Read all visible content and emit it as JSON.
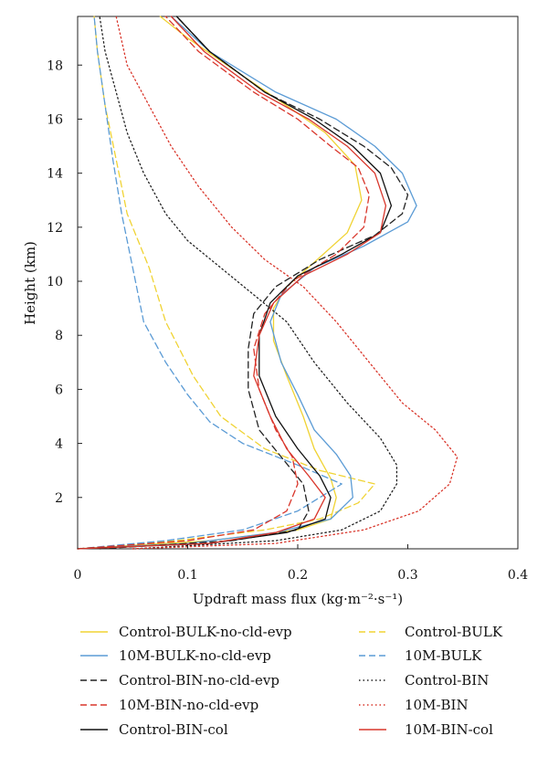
{
  "chart_data": {
    "type": "line",
    "xlabel": "Updraft mass flux (kg·m⁻²·s⁻¹)",
    "ylabel": "Height (km)",
    "xlim": [
      0,
      0.4
    ],
    "ylim": [
      0.1,
      19.8
    ],
    "x_ticks": [
      "0",
      "0.1",
      "0.2",
      "0.3",
      "0.4"
    ],
    "y_ticks": [
      "2",
      "4",
      "6",
      "8",
      "10",
      "12",
      "14",
      "16",
      "18"
    ],
    "x_tick_values": [
      0,
      0.1,
      0.2,
      0.3,
      0.4
    ],
    "y_tick_values": [
      2,
      4,
      6,
      8,
      10,
      12,
      14,
      16,
      18
    ],
    "grid": false,
    "legend_position": "below, two columns",
    "series": [
      {
        "name": "Control-BULK-no-cld-evp",
        "color": "#f0d334",
        "dash": "solid",
        "points": [
          [
            0.0,
            0.1
          ],
          [
            0.12,
            0.4
          ],
          [
            0.2,
            0.8
          ],
          [
            0.23,
            1.2
          ],
          [
            0.235,
            2.0
          ],
          [
            0.23,
            2.7
          ],
          [
            0.215,
            3.8
          ],
          [
            0.205,
            5.0
          ],
          [
            0.19,
            6.5
          ],
          [
            0.178,
            7.8
          ],
          [
            0.178,
            9.0
          ],
          [
            0.19,
            9.8
          ],
          [
            0.215,
            10.7
          ],
          [
            0.245,
            11.8
          ],
          [
            0.258,
            13.0
          ],
          [
            0.252,
            14.3
          ],
          [
            0.225,
            15.5
          ],
          [
            0.19,
            16.5
          ],
          [
            0.15,
            17.6
          ],
          [
            0.1,
            19.0
          ],
          [
            0.075,
            19.8
          ]
        ]
      },
      {
        "name": "Control-BULK",
        "color": "#f0d334",
        "dash": "dashed",
        "points": [
          [
            0.0,
            0.1
          ],
          [
            0.09,
            0.4
          ],
          [
            0.17,
            0.8
          ],
          [
            0.22,
            1.2
          ],
          [
            0.255,
            1.8
          ],
          [
            0.27,
            2.5
          ],
          [
            0.22,
            3.0
          ],
          [
            0.17,
            3.8
          ],
          [
            0.13,
            5.0
          ],
          [
            0.105,
            6.5
          ],
          [
            0.08,
            8.5
          ],
          [
            0.065,
            10.5
          ],
          [
            0.045,
            12.5
          ],
          [
            0.035,
            14.5
          ],
          [
            0.025,
            16.5
          ],
          [
            0.018,
            18.5
          ],
          [
            0.015,
            19.8
          ]
        ]
      },
      {
        "name": "10M-BULK-no-cld-evp",
        "color": "#5b9bd5",
        "dash": "solid",
        "points": [
          [
            0.0,
            0.1
          ],
          [
            0.1,
            0.3
          ],
          [
            0.18,
            0.7
          ],
          [
            0.23,
            1.2
          ],
          [
            0.25,
            2.0
          ],
          [
            0.248,
            2.8
          ],
          [
            0.235,
            3.6
          ],
          [
            0.215,
            4.5
          ],
          [
            0.2,
            5.8
          ],
          [
            0.185,
            7.0
          ],
          [
            0.175,
            8.5
          ],
          [
            0.185,
            9.5
          ],
          [
            0.215,
            10.5
          ],
          [
            0.26,
            11.3
          ],
          [
            0.3,
            12.2
          ],
          [
            0.308,
            12.8
          ],
          [
            0.295,
            14.0
          ],
          [
            0.27,
            15.0
          ],
          [
            0.235,
            16.0
          ],
          [
            0.18,
            17.0
          ],
          [
            0.12,
            18.5
          ],
          [
            0.085,
            19.8
          ]
        ]
      },
      {
        "name": "10M-BULK",
        "color": "#5b9bd5",
        "dash": "dashed",
        "points": [
          [
            0.0,
            0.1
          ],
          [
            0.08,
            0.4
          ],
          [
            0.15,
            0.8
          ],
          [
            0.2,
            1.5
          ],
          [
            0.24,
            2.5
          ],
          [
            0.2,
            3.2
          ],
          [
            0.15,
            4.0
          ],
          [
            0.12,
            4.8
          ],
          [
            0.1,
            5.8
          ],
          [
            0.08,
            7.0
          ],
          [
            0.06,
            8.5
          ],
          [
            0.05,
            10.5
          ],
          [
            0.04,
            12.5
          ],
          [
            0.032,
            14.5
          ],
          [
            0.025,
            16.5
          ],
          [
            0.018,
            18.5
          ],
          [
            0.015,
            19.8
          ]
        ]
      },
      {
        "name": "Control-BIN-no-cld-evp",
        "color": "#222222",
        "dash": "dashed",
        "points": [
          [
            0.02,
            0.1
          ],
          [
            0.14,
            0.4
          ],
          [
            0.2,
            0.8
          ],
          [
            0.21,
            1.5
          ],
          [
            0.205,
            2.5
          ],
          [
            0.185,
            3.5
          ],
          [
            0.165,
            4.5
          ],
          [
            0.155,
            6.0
          ],
          [
            0.155,
            7.5
          ],
          [
            0.16,
            8.8
          ],
          [
            0.18,
            9.8
          ],
          [
            0.22,
            10.8
          ],
          [
            0.27,
            11.7
          ],
          [
            0.295,
            12.5
          ],
          [
            0.3,
            13.2
          ],
          [
            0.285,
            14.2
          ],
          [
            0.26,
            15.0
          ],
          [
            0.22,
            16.0
          ],
          [
            0.17,
            17.0
          ],
          [
            0.12,
            18.5
          ],
          [
            0.09,
            19.8
          ]
        ]
      },
      {
        "name": "Control-BIN",
        "color": "#222222",
        "dash": "dotted",
        "points": [
          [
            0.05,
            0.1
          ],
          [
            0.18,
            0.4
          ],
          [
            0.24,
            0.8
          ],
          [
            0.275,
            1.5
          ],
          [
            0.29,
            2.5
          ],
          [
            0.29,
            3.2
          ],
          [
            0.275,
            4.2
          ],
          [
            0.245,
            5.5
          ],
          [
            0.215,
            7.0
          ],
          [
            0.19,
            8.5
          ],
          [
            0.16,
            9.5
          ],
          [
            0.13,
            10.5
          ],
          [
            0.1,
            11.5
          ],
          [
            0.08,
            12.5
          ],
          [
            0.06,
            14.0
          ],
          [
            0.045,
            15.5
          ],
          [
            0.035,
            17.0
          ],
          [
            0.025,
            18.5
          ],
          [
            0.02,
            19.8
          ]
        ]
      },
      {
        "name": "10M-BIN-no-cld-evp",
        "color": "#d9362b",
        "dash": "dashed",
        "points": [
          [
            0.0,
            0.1
          ],
          [
            0.1,
            0.4
          ],
          [
            0.16,
            0.8
          ],
          [
            0.19,
            1.5
          ],
          [
            0.2,
            2.5
          ],
          [
            0.195,
            3.5
          ],
          [
            0.18,
            4.5
          ],
          [
            0.165,
            6.0
          ],
          [
            0.16,
            7.5
          ],
          [
            0.17,
            8.8
          ],
          [
            0.195,
            10.0
          ],
          [
            0.235,
            11.0
          ],
          [
            0.26,
            12.0
          ],
          [
            0.265,
            13.2
          ],
          [
            0.255,
            14.2
          ],
          [
            0.23,
            15.0
          ],
          [
            0.2,
            16.0
          ],
          [
            0.16,
            17.0
          ],
          [
            0.11,
            18.5
          ],
          [
            0.08,
            19.8
          ]
        ]
      },
      {
        "name": "10M-BIN",
        "color": "#d9362b",
        "dash": "dotted",
        "points": [
          [
            0.05,
            0.1
          ],
          [
            0.18,
            0.3
          ],
          [
            0.26,
            0.8
          ],
          [
            0.31,
            1.5
          ],
          [
            0.338,
            2.5
          ],
          [
            0.345,
            3.5
          ],
          [
            0.325,
            4.5
          ],
          [
            0.295,
            5.5
          ],
          [
            0.265,
            7.0
          ],
          [
            0.235,
            8.5
          ],
          [
            0.205,
            9.8
          ],
          [
            0.17,
            10.8
          ],
          [
            0.14,
            12.0
          ],
          [
            0.11,
            13.5
          ],
          [
            0.085,
            15.0
          ],
          [
            0.065,
            16.5
          ],
          [
            0.045,
            18.0
          ],
          [
            0.035,
            19.8
          ]
        ]
      },
      {
        "name": "Control-BIN-col",
        "color": "#111111",
        "dash": "solid",
        "points": [
          [
            0.0,
            0.1
          ],
          [
            0.12,
            0.3
          ],
          [
            0.19,
            0.7
          ],
          [
            0.225,
            1.2
          ],
          [
            0.23,
            2.0
          ],
          [
            0.22,
            2.8
          ],
          [
            0.2,
            3.8
          ],
          [
            0.18,
            5.0
          ],
          [
            0.165,
            6.5
          ],
          [
            0.165,
            8.0
          ],
          [
            0.175,
            9.2
          ],
          [
            0.2,
            10.2
          ],
          [
            0.24,
            11.0
          ],
          [
            0.275,
            11.8
          ],
          [
            0.285,
            12.8
          ],
          [
            0.275,
            14.0
          ],
          [
            0.25,
            15.0
          ],
          [
            0.215,
            16.0
          ],
          [
            0.17,
            17.0
          ],
          [
            0.12,
            18.5
          ],
          [
            0.09,
            19.8
          ]
        ]
      },
      {
        "name": "10M-BIN-col",
        "color": "#d9362b",
        "dash": "solid",
        "points": [
          [
            0.0,
            0.1
          ],
          [
            0.12,
            0.3
          ],
          [
            0.18,
            0.7
          ],
          [
            0.215,
            1.2
          ],
          [
            0.225,
            2.0
          ],
          [
            0.21,
            2.8
          ],
          [
            0.19,
            3.8
          ],
          [
            0.175,
            5.0
          ],
          [
            0.16,
            6.5
          ],
          [
            0.165,
            8.0
          ],
          [
            0.178,
            9.2
          ],
          [
            0.205,
            10.2
          ],
          [
            0.245,
            11.0
          ],
          [
            0.275,
            11.8
          ],
          [
            0.28,
            12.8
          ],
          [
            0.27,
            14.0
          ],
          [
            0.245,
            15.0
          ],
          [
            0.21,
            16.0
          ],
          [
            0.165,
            17.0
          ],
          [
            0.115,
            18.5
          ],
          [
            0.085,
            19.8
          ]
        ]
      }
    ],
    "legend": {
      "left": [
        "Control-BULK-no-cld-evp",
        "10M-BULK-no-cld-evp",
        "Control-BIN-no-cld-evp",
        "10M-BIN-no-cld-evp",
        "Control-BIN-col"
      ],
      "right": [
        "Control-BULK",
        "10M-BULK",
        "Control-BIN",
        "10M-BIN",
        "10M-BIN-col"
      ]
    }
  }
}
